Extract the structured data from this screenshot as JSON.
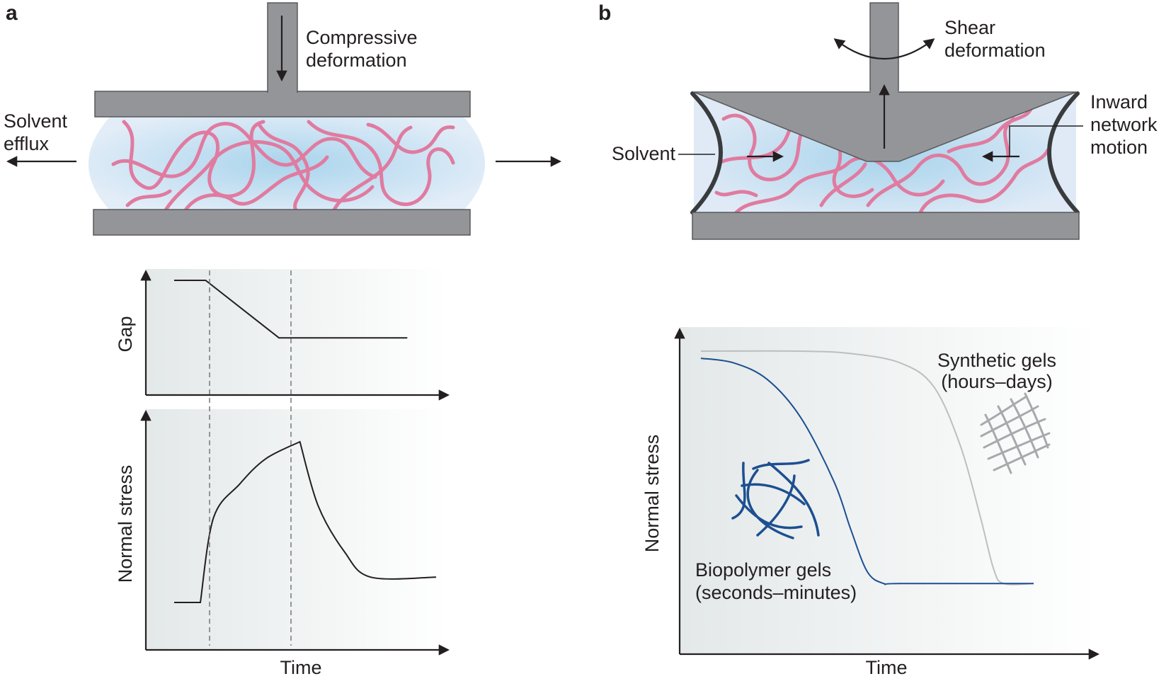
{
  "panel_a": {
    "label": "a",
    "compressive_label_1": "Compressive",
    "compressive_label_2": "deformation",
    "solvent_label_1": "Solvent",
    "solvent_label_2": "efflux",
    "gap_ylabel": "Gap",
    "stress_ylabel": "Normal stress",
    "xlabel": "Time"
  },
  "panel_b": {
    "label": "b",
    "shear_label_1": "Shear",
    "shear_label_2": "deformation",
    "solvent_label": "Solvent",
    "inward_label_1": "Inward",
    "inward_label_2": "network",
    "inward_label_3": "motion",
    "ylabel": "Normal stress",
    "xlabel": "Time",
    "synthetic_label_1": "Synthetic gels",
    "synthetic_label_2": "(hours–days)",
    "biopolymer_label_1": "Biopolymer gels",
    "biopolymer_label_2": "(seconds–minutes)"
  },
  "colors": {
    "plate": "#939598",
    "chain": "#e07ba0",
    "solvent": "#dfeaf6",
    "biopolymer": "#1d4f91",
    "synthetic": "#bcbec0"
  },
  "chart_data": [
    {
      "type": "line",
      "xlabel": "Time",
      "ylabel": "Gap",
      "series": [
        {
          "x": [
            0,
            0.12,
            0.4,
            0.89
          ],
          "y": [
            1.0,
            1.0,
            0.3,
            0.3
          ]
        }
      ]
    },
    {
      "type": "line",
      "xlabel": "Time",
      "ylabel": "Normal stress",
      "series": [
        {
          "x": [
            0,
            0.1,
            0.15,
            0.25,
            0.35,
            0.48,
            0.55,
            0.65,
            0.75,
            1.0
          ],
          "y": [
            0.05,
            0.05,
            0.55,
            0.75,
            0.9,
            1.0,
            0.62,
            0.35,
            0.2,
            0.2
          ]
        }
      ]
    },
    {
      "type": "line",
      "xlabel": "Time",
      "ylabel": "Normal stress",
      "series": [
        {
          "name": "Biopolymer gels (seconds–minutes)",
          "x": [
            0,
            0.1,
            0.2,
            0.3,
            0.4,
            0.45,
            0.5,
            0.55,
            0.6,
            1.0
          ],
          "y": [
            0.97,
            0.95,
            0.88,
            0.72,
            0.45,
            0.25,
            0.07,
            0.02,
            0.02,
            0.02
          ]
        },
        {
          "name": "Synthetic gels (hours–days)",
          "x": [
            0,
            0.3,
            0.45,
            0.6,
            0.7,
            0.78,
            0.84,
            0.88,
            0.91,
            1.0
          ],
          "y": [
            1.0,
            1.0,
            0.99,
            0.95,
            0.85,
            0.6,
            0.3,
            0.08,
            0.02,
            0.02
          ]
        }
      ]
    }
  ]
}
